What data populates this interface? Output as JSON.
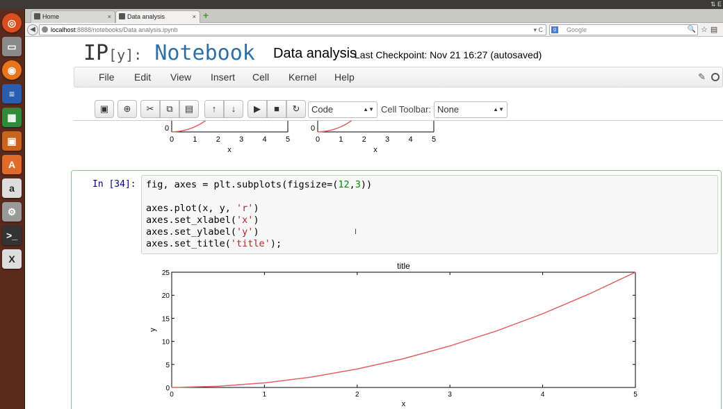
{
  "browser": {
    "tabs": [
      {
        "label": "Home",
        "close": "×"
      },
      {
        "label": "Data analysis",
        "close": "×"
      }
    ],
    "new_tab": "+",
    "url_host": "localhost",
    "url_path": ":8888/notebooks/Data analysis.ipynb",
    "url_reload": "▾ C",
    "search_placeholder": "Google",
    "search_engine_glyph": "g"
  },
  "top_bar": {
    "indicator": "⇅ E"
  },
  "notebook": {
    "logo_ip": "IP",
    "logo_y": "[y]:",
    "logo_notebook": "Notebook",
    "title": "Data analysis",
    "checkpoint": "Last Checkpoint: Nov 21 16:27 (autosaved)"
  },
  "menu": {
    "items": [
      "File",
      "Edit",
      "View",
      "Insert",
      "Cell",
      "Kernel",
      "Help"
    ]
  },
  "toolbar": {
    "cell_type": "Code",
    "cell_toolbar_label": "Cell Toolbar:",
    "cell_toolbar_value": "None",
    "icons": [
      "save-icon",
      "insert-cell-icon",
      "cut-icon",
      "copy-icon",
      "paste-icon",
      "move-up-icon",
      "move-down-icon",
      "run-icon",
      "stop-icon",
      "restart-icon"
    ]
  },
  "previous_output": {
    "ytick": "0",
    "xticks": [
      "0",
      "1",
      "2",
      "3",
      "4",
      "5"
    ],
    "xlabel": "x"
  },
  "cell": {
    "prompt": "In [34]:",
    "code_lines": [
      [
        {
          "t": "fig, axes = plt.subplots(figsize=("
        },
        {
          "t": "12",
          "c": "n"
        },
        {
          "t": ","
        },
        {
          "t": "3",
          "c": "n"
        },
        {
          "t": "))"
        }
      ],
      [],
      [
        {
          "t": "axes.plot(x, y, "
        },
        {
          "t": "'r'",
          "c": "s"
        },
        {
          "t": ")"
        }
      ],
      [
        {
          "t": "axes.set_xlabel("
        },
        {
          "t": "'x'",
          "c": "s"
        },
        {
          "t": ")"
        }
      ],
      [
        {
          "t": "axes.set_ylabel("
        },
        {
          "t": "'y'",
          "c": "s"
        },
        {
          "t": ")"
        }
      ],
      [
        {
          "t": "axes.set_title("
        },
        {
          "t": "'title'",
          "c": "s"
        },
        {
          "t": ");"
        }
      ]
    ]
  },
  "chart_data": {
    "type": "line",
    "title": "title",
    "xlabel": "x",
    "ylabel": "y",
    "xlim": [
      0,
      5
    ],
    "ylim": [
      0,
      25
    ],
    "xticks": [
      0,
      1,
      2,
      3,
      4,
      5
    ],
    "yticks": [
      0,
      5,
      10,
      15,
      20,
      25
    ],
    "line_color": "#e06060",
    "grid": false,
    "series": [
      {
        "x": [
          0,
          0.5,
          1,
          1.5,
          2,
          2.5,
          3,
          3.5,
          4,
          4.5,
          5
        ],
        "values": [
          0,
          0.25,
          1,
          2.25,
          4,
          6.25,
          9,
          12.25,
          16,
          20.25,
          25
        ]
      }
    ]
  },
  "colors": {
    "accent": "#2e6fa6",
    "cell_border": "#87c68b",
    "launcher": "#5a2a1c"
  }
}
